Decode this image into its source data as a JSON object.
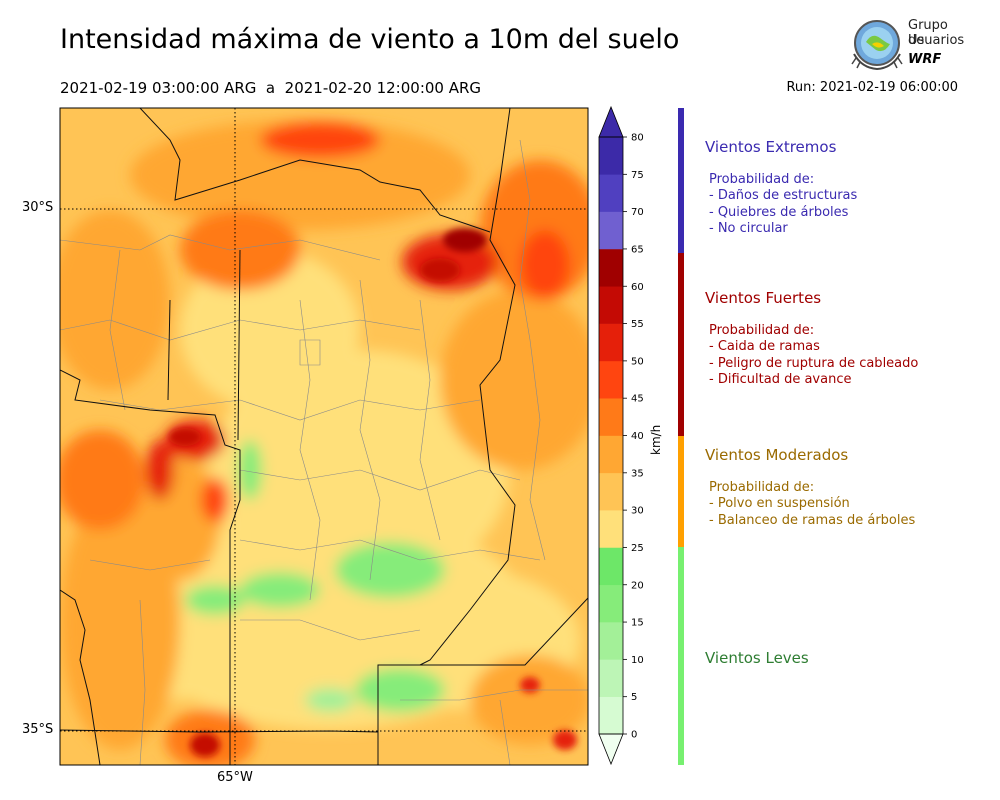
{
  "header": {
    "title": "Intensidad máxima de viento a 10m del suelo",
    "period": "2021-02-19 03:00:00 ARG  a  2021-02-20 12:00:00 ARG",
    "run": "Run: 2021-02-19 06:00:00"
  },
  "logo": {
    "line1": "Grupo de",
    "line2": "Usuarios",
    "line3": "WRF"
  },
  "map": {
    "lat_labels": [
      "30°S",
      "35°S"
    ],
    "lon_labels": [
      "65°W"
    ]
  },
  "colorbar": {
    "unit": "km/h",
    "ticks": [
      "0",
      "5",
      "10",
      "15",
      "20",
      "25",
      "30",
      "35",
      "40",
      "45",
      "50",
      "55",
      "60",
      "65",
      "70",
      "75",
      "80"
    ],
    "colors": [
      "#f0fff0",
      "#d6fbd2",
      "#bdf5b6",
      "#a3f098",
      "#86ec7a",
      "#6de768",
      "#ffe07a",
      "#ffc455",
      "#ffa733",
      "#ff7a18",
      "#ff4510",
      "#e5200a",
      "#c40a04",
      "#a00000",
      "#7060d0",
      "#5040c0",
      "#3c2aa8"
    ]
  },
  "categories": [
    {
      "name": "Vientos Extremos",
      "color": "#3a2ab0",
      "prob_title": "Probabilidad de:",
      "items": [
        "- Daños de estructuras",
        "- Quiebres de árboles",
        "- No circular"
      ]
    },
    {
      "name": "Vientos Fuertes",
      "color": "#a00000",
      "prob_title": "Probabilidad de:",
      "items": [
        "- Caida de ramas",
        "- Peligro de ruptura de cableado",
        "- Dificultad de avance"
      ]
    },
    {
      "name": "Vientos Moderados",
      "color": "#9a6a00",
      "prob_title": "Probabilidad de:",
      "items": [
        "- Polvo en suspensión",
        "- Balanceo de ramas de árboles"
      ]
    },
    {
      "name": "Vientos Leves",
      "color": "#2e7d32"
    }
  ]
}
